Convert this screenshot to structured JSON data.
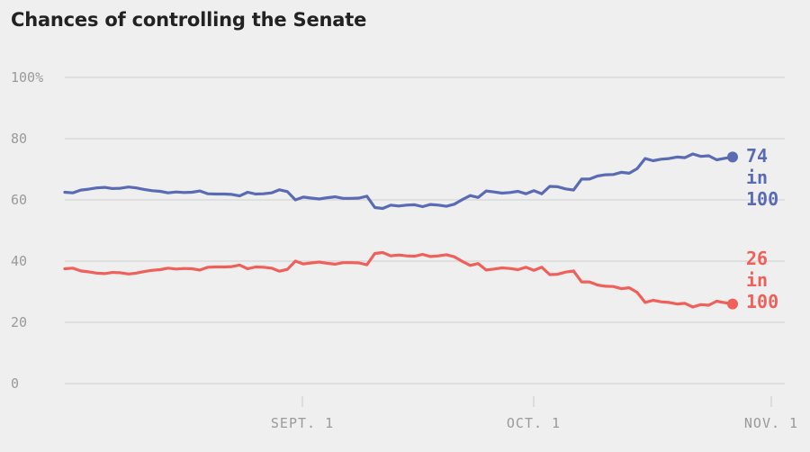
{
  "header": {
    "title": "Chances of controlling the Senate"
  },
  "colors": {
    "democrat": "#5a6bb3",
    "republican": "#f0605a",
    "grid": "#cfcfcf",
    "tick": "#9a9a9a"
  },
  "chart_data": {
    "type": "line",
    "title": "Chances of controlling the Senate",
    "xlabel": "",
    "ylabel": "",
    "ylim": [
      0,
      100
    ],
    "grid": true,
    "y_ticks": [
      "100%",
      "80",
      "60",
      "40",
      "20",
      "0"
    ],
    "x_ticks": [
      {
        "label": "SEPT. 1",
        "day": 31
      },
      {
        "label": "OCT. 1",
        "day": 61
      },
      {
        "label": "NOV. 1",
        "day": 92
      }
    ],
    "series": [
      {
        "key": "dem",
        "color": "#5a6bb3",
        "end_label": [
          "74",
          "in",
          "100"
        ],
        "values": [
          62.5,
          62.3,
          63.2,
          63.5,
          63.9,
          64.1,
          63.7,
          63.8,
          64.2,
          63.9,
          63.4,
          63.0,
          62.8,
          62.3,
          62.6,
          62.4,
          62.5,
          62.9,
          62.0,
          61.9,
          61.9,
          61.8,
          61.3,
          62.5,
          61.9,
          62.0,
          62.3,
          63.3,
          62.7,
          60.0,
          60.9,
          60.6,
          60.3,
          60.7,
          61.0,
          60.5,
          60.5,
          60.6,
          61.2,
          57.5,
          57.2,
          58.3,
          58.0,
          58.3,
          58.4,
          57.8,
          58.5,
          58.3,
          57.9,
          58.6,
          60.1,
          61.4,
          60.8,
          62.9,
          62.6,
          62.2,
          62.4,
          62.8,
          62.0,
          63.0,
          62.0,
          64.4,
          64.3,
          63.6,
          63.2,
          66.8,
          66.8,
          67.8,
          68.2,
          68.3,
          69.0,
          68.7,
          70.2,
          73.5,
          72.8,
          73.3,
          73.5,
          74.0,
          73.8,
          75.0,
          74.2,
          74.4,
          73.1,
          73.6,
          74.0
        ]
      },
      {
        "key": "rep",
        "color": "#f0605a",
        "end_label": [
          "26",
          "in",
          "100"
        ],
        "values": [
          37.5,
          37.7,
          36.8,
          36.5,
          36.1,
          35.9,
          36.3,
          36.2,
          35.8,
          36.1,
          36.6,
          37.0,
          37.2,
          37.7,
          37.4,
          37.6,
          37.5,
          37.1,
          38.0,
          38.1,
          38.1,
          38.2,
          38.7,
          37.5,
          38.1,
          38.0,
          37.7,
          36.7,
          37.3,
          40.0,
          39.1,
          39.4,
          39.7,
          39.3,
          39.0,
          39.5,
          39.5,
          39.4,
          38.8,
          42.5,
          42.8,
          41.7,
          42.0,
          41.7,
          41.6,
          42.2,
          41.5,
          41.7,
          42.1,
          41.4,
          39.9,
          38.6,
          39.2,
          37.1,
          37.4,
          37.8,
          37.6,
          37.2,
          38.0,
          37.0,
          38.0,
          35.6,
          35.7,
          36.4,
          36.8,
          33.2,
          33.2,
          32.2,
          31.8,
          31.7,
          31.0,
          31.3,
          29.8,
          26.5,
          27.2,
          26.7,
          26.5,
          26.0,
          26.2,
          25.0,
          25.8,
          25.6,
          26.9,
          26.4,
          26.0
        ]
      }
    ]
  }
}
